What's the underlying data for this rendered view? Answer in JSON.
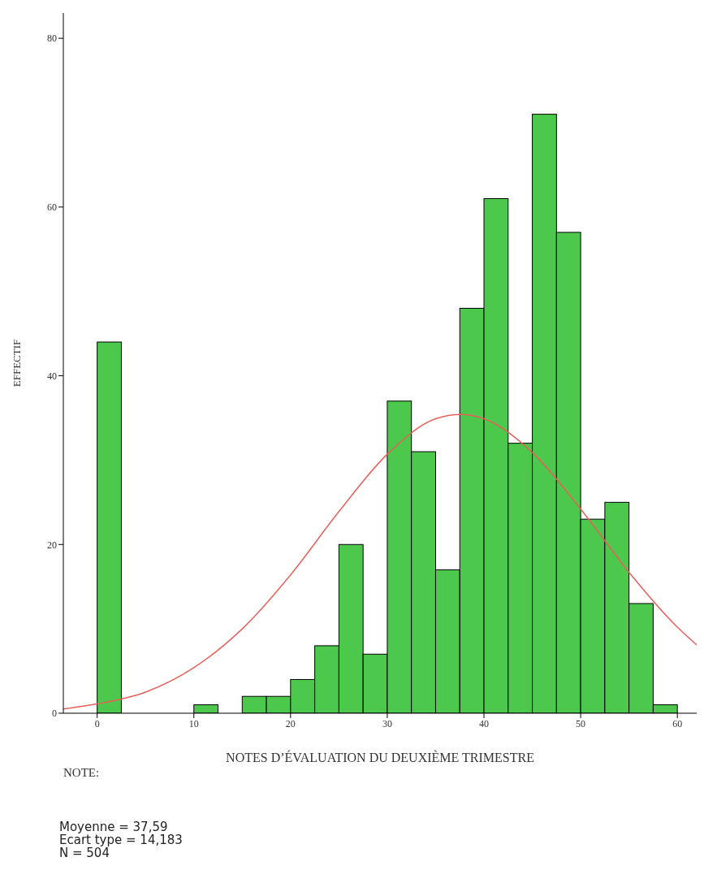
{
  "chart_data": {
    "type": "histogram",
    "xlabel": "NOTES D’ÉVALUATION DU DEUXIÈME TRIMESTRE",
    "ylabel": "EFFECTIF",
    "bins": [
      0,
      2.5,
      5,
      7.5,
      10,
      12.5,
      15,
      17.5,
      20,
      22.5,
      25,
      27.5,
      30,
      32.5,
      35,
      37.5,
      40,
      42.5,
      45,
      47.5,
      50,
      52.5,
      55,
      57.5,
      60
    ],
    "values": [
      44,
      0,
      0,
      0,
      1,
      0,
      2,
      2,
      4,
      8,
      20,
      7,
      37,
      31,
      17,
      48,
      61,
      32,
      71,
      57,
      23,
      25,
      13,
      1
    ],
    "color": "#4cc94c",
    "series": [
      {
        "type": "line",
        "color": "#e8605a",
        "x": [
          -3.5,
          0,
          5,
          10,
          15,
          20,
          25,
          30,
          35,
          37.59,
          40,
          45,
          50,
          55,
          60,
          62
        ],
        "values": [
          0.5,
          1.1,
          2.5,
          5.4,
          10,
          16.4,
          23.9,
          30.7,
          34.9,
          35.4,
          34.9,
          30.9,
          24.2,
          16.7,
          10.2,
          8.1
        ]
      }
    ],
    "xlim": [
      -3.5,
      62
    ],
    "xticks": [
      0,
      10,
      20,
      30,
      40,
      50,
      60
    ],
    "ylim": [
      0,
      83
    ],
    "yticks": [
      0,
      20,
      40,
      60,
      80
    ],
    "grid": false,
    "annotations": [
      "NOTE:",
      "Moyenne = 37,59",
      "Ecart type = 14,183",
      "N = 504"
    ]
  }
}
